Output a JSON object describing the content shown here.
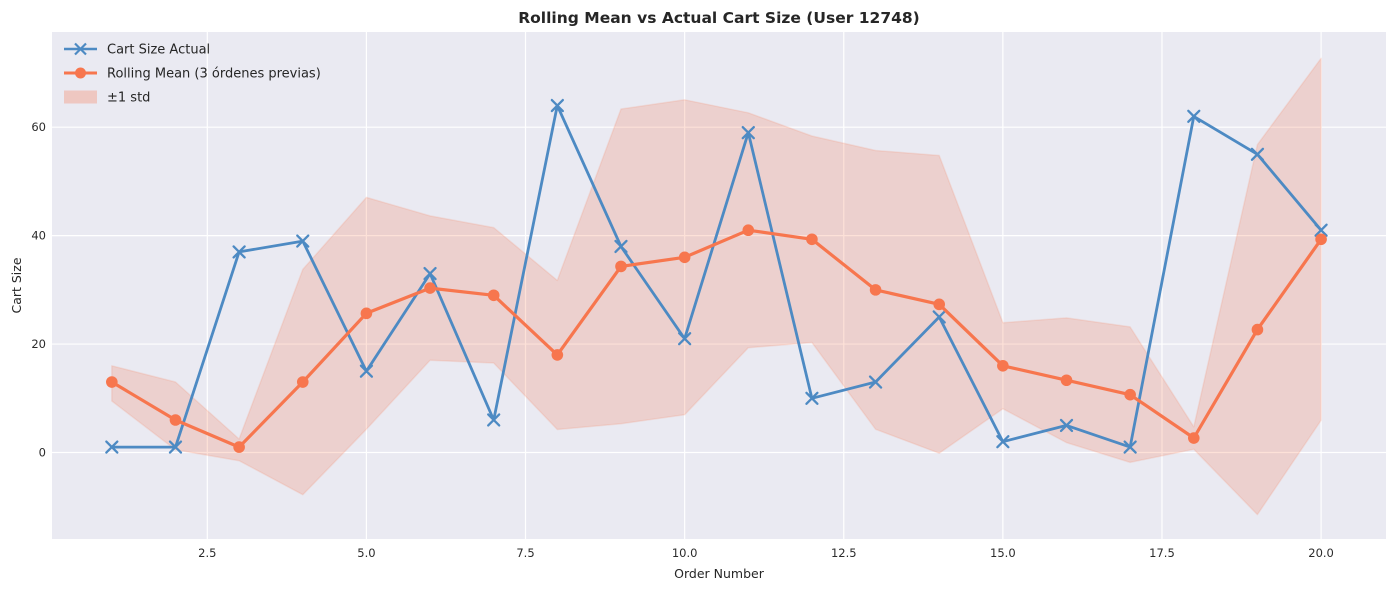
{
  "title": "Rolling Mean vs Actual Cart Size (User 12748)",
  "chart_data": {
    "type": "line",
    "title": "Rolling Mean vs Actual Cart Size (User 12748)",
    "xlabel": "Order Number",
    "ylabel": "Cart Size",
    "x": [
      1,
      2,
      3,
      4,
      5,
      6,
      7,
      8,
      9,
      10,
      11,
      12,
      13,
      14,
      15,
      16,
      17,
      18,
      19,
      20
    ],
    "series": [
      {
        "name": "Cart Size Actual",
        "marker": "x",
        "color": "#4d8ac3",
        "values": [
          1,
          1,
          37,
          39,
          15,
          33,
          6,
          64,
          38,
          21,
          59,
          10,
          13,
          25,
          2,
          5,
          1,
          62,
          55,
          41
        ]
      },
      {
        "name": "Rolling Mean (3 órdenes previas)",
        "marker": "circle",
        "color": "#f7764e",
        "values": [
          13,
          6,
          1,
          13,
          25.67,
          30.33,
          29,
          18,
          34.33,
          36,
          41,
          39.33,
          30,
          27.33,
          16,
          13.33,
          10.67,
          2.67,
          22.67,
          39.33
        ]
      }
    ],
    "band": {
      "name": "±1 std",
      "color": "#f7764e",
      "fill_opacity": 0.22,
      "lower": [
        9.5,
        0.5,
        -1.5,
        -7.78,
        4.28,
        17.01,
        16.51,
        4.25,
        5.32,
        6.95,
        19.34,
        20.3,
        4.29,
        -0.13,
        8.06,
        1.83,
        -1.83,
        0.59,
        -11.45,
        5.95
      ],
      "upper": [
        16,
        13,
        2.5,
        33.78,
        47.06,
        43.65,
        41.49,
        31.75,
        63.35,
        65.05,
        62.66,
        58.37,
        55.71,
        54.79,
        23.94,
        24.83,
        23.17,
        4.75,
        56.79,
        72.71
      ]
    },
    "x_ticks": [
      2.5,
      5,
      7.5,
      10,
      12.5,
      15,
      17.5,
      20
    ],
    "x_tick_labels": [
      "2.5",
      "5.0",
      "7.5",
      "10.0",
      "12.5",
      "15.0",
      "17.5",
      "20.0"
    ],
    "y_ticks": [
      0,
      20,
      40,
      60
    ],
    "y_tick_labels": [
      "0",
      "20",
      "40",
      "60"
    ],
    "xlim": [
      0.06,
      21.02
    ],
    "ylim": [
      -15.95,
      77.56
    ],
    "grid": true,
    "legend_position": "upper left",
    "colors": {
      "figure_background": "#ffffff",
      "axes_background": "#eaeaf2",
      "gridline": "#ffffff",
      "text": "#262626"
    }
  }
}
